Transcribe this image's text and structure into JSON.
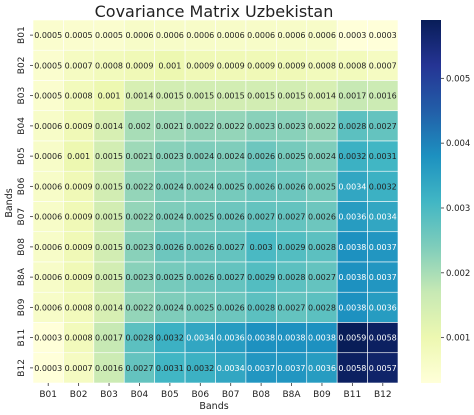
{
  "chart_data": {
    "type": "heatmap",
    "title": "Covariance Matrix Uzbekistan",
    "xlabel": "Bands",
    "ylabel": "Bands",
    "x_categories": [
      "B01",
      "B02",
      "B03",
      "B04",
      "B05",
      "B06",
      "B07",
      "B08",
      "B8A",
      "B09",
      "B11",
      "B12"
    ],
    "y_categories": [
      "B01",
      "B02",
      "B03",
      "B04",
      "B05",
      "B06",
      "B07",
      "B08",
      "B8A",
      "B09",
      "B11",
      "B12"
    ],
    "values": [
      [
        0.0005,
        0.0005,
        0.0005,
        0.0006,
        0.0006,
        0.0006,
        0.0006,
        0.0006,
        0.0006,
        0.0006,
        0.0003,
        0.0003
      ],
      [
        0.0005,
        0.0007,
        0.0008,
        0.0009,
        0.001,
        0.0009,
        0.0009,
        0.0009,
        0.0009,
        0.0008,
        0.0008,
        0.0007
      ],
      [
        0.0005,
        0.0008,
        0.001,
        0.0014,
        0.0015,
        0.0015,
        0.0015,
        0.0015,
        0.0015,
        0.0014,
        0.0017,
        0.0016
      ],
      [
        0.0006,
        0.0009,
        0.0014,
        0.002,
        0.0021,
        0.0022,
        0.0022,
        0.0023,
        0.0023,
        0.0022,
        0.0028,
        0.0027
      ],
      [
        0.0006,
        0.001,
        0.0015,
        0.0021,
        0.0023,
        0.0024,
        0.0024,
        0.0026,
        0.0025,
        0.0024,
        0.0032,
        0.0031
      ],
      [
        0.0006,
        0.0009,
        0.0015,
        0.0022,
        0.0024,
        0.0024,
        0.0025,
        0.0026,
        0.0026,
        0.0025,
        0.0034,
        0.0032
      ],
      [
        0.0006,
        0.0009,
        0.0015,
        0.0022,
        0.0024,
        0.0025,
        0.0026,
        0.0027,
        0.0027,
        0.0026,
        0.0036,
        0.0034
      ],
      [
        0.0006,
        0.0009,
        0.0015,
        0.0023,
        0.0026,
        0.0026,
        0.0027,
        0.003,
        0.0029,
        0.0028,
        0.0038,
        0.0037
      ],
      [
        0.0006,
        0.0009,
        0.0015,
        0.0023,
        0.0025,
        0.0026,
        0.0027,
        0.0029,
        0.0028,
        0.0027,
        0.0038,
        0.0037
      ],
      [
        0.0006,
        0.0008,
        0.0014,
        0.0022,
        0.0024,
        0.0025,
        0.0026,
        0.0028,
        0.0027,
        0.0028,
        0.0038,
        0.0036
      ],
      [
        0.0003,
        0.0008,
        0.0017,
        0.0028,
        0.0032,
        0.0034,
        0.0036,
        0.0038,
        0.0038,
        0.0038,
        0.0059,
        0.0058
      ],
      [
        0.0003,
        0.0007,
        0.0016,
        0.0027,
        0.0031,
        0.0032,
        0.0034,
        0.0037,
        0.0037,
        0.0036,
        0.0058,
        0.0057
      ]
    ],
    "colorbar": {
      "colormap": "YlGnBu",
      "range": [
        0.0003,
        0.0059
      ],
      "ticks": [
        0.001,
        0.002,
        0.003,
        0.004,
        0.005
      ],
      "tick_labels": [
        "0.001",
        "0.002",
        "0.003",
        "0.004",
        "0.005"
      ]
    },
    "colors": {
      "colormap_stops": [
        "#ffffd9",
        "#edf8b1",
        "#c7e9b4",
        "#7fcdbb",
        "#41b6c4",
        "#1d91c0",
        "#225ea8",
        "#253494",
        "#081d58"
      ],
      "cell_border": "#ffffff",
      "text_dark": "#222222",
      "text_light": "#ffffff"
    }
  }
}
